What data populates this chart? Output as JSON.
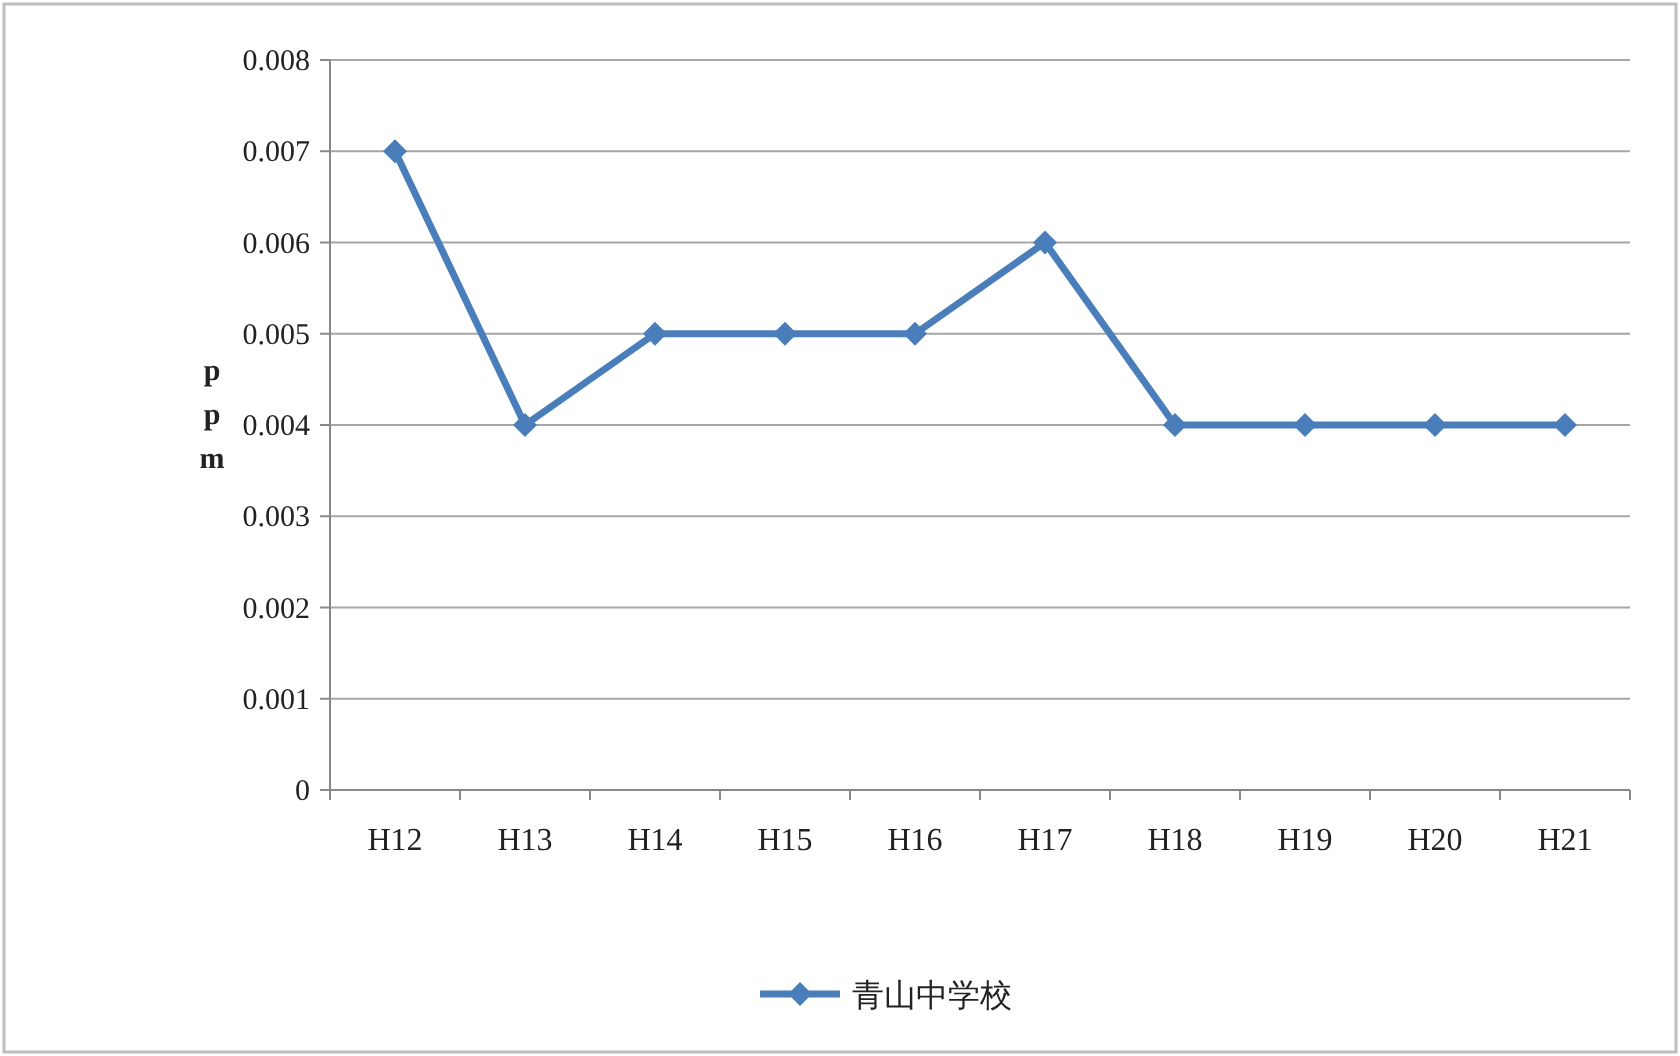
{
  "chart_data": {
    "type": "line",
    "ylabel": "ppm",
    "categories": [
      "H12",
      "H13",
      "H14",
      "H15",
      "H16",
      "H17",
      "H18",
      "H19",
      "H20",
      "H21"
    ],
    "series": [
      {
        "name": "青山中学校",
        "color": "#4a7ebb",
        "values": [
          0.007,
          0.004,
          0.005,
          0.005,
          0.005,
          0.006,
          0.004,
          0.004,
          0.004,
          0.004
        ]
      }
    ],
    "ylim": [
      0,
      0.008
    ],
    "yticks": [
      0,
      0.001,
      0.002,
      0.003,
      0.004,
      0.005,
      0.006,
      0.007,
      0.008
    ],
    "grid": "y",
    "legend": "bottom",
    "marker": "diamond",
    "line_style": "solid"
  }
}
